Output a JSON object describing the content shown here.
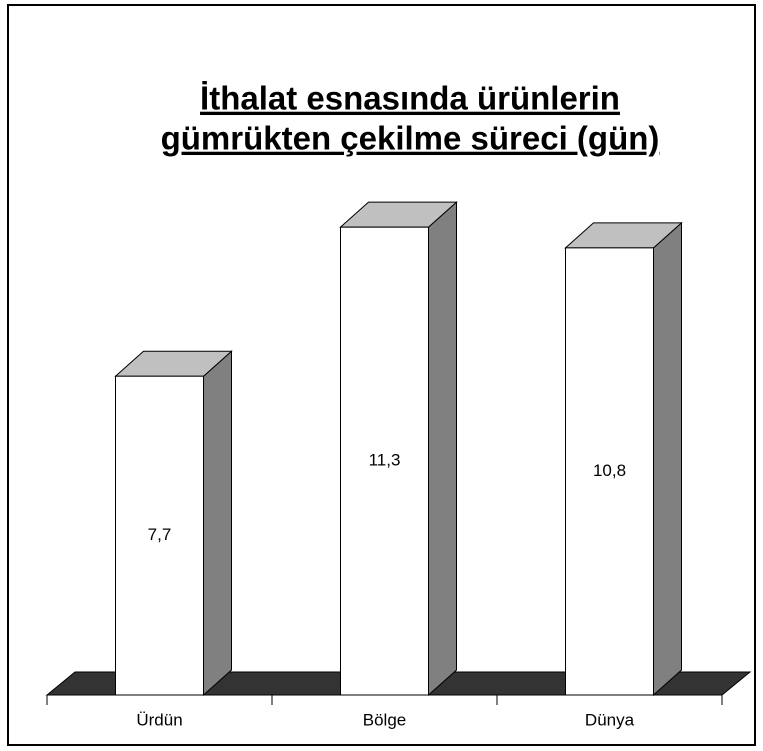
{
  "chart_data": {
    "type": "bar3d",
    "title": [
      "İthalat esnasında ürünlerin",
      "gümrükten çekilme süreci (gün)"
    ],
    "categories": [
      "Ürdün",
      "Bölge",
      "Dünya"
    ],
    "values": [
      7.7,
      11.3,
      10.8
    ],
    "value_labels": [
      "7,7",
      "11,3",
      "10,8"
    ],
    "color": "#ffffff"
  }
}
